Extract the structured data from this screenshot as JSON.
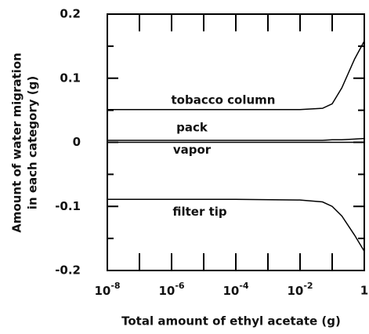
{
  "chart_data": {
    "type": "line",
    "xlabel": "Total amount of ethyl acetate (g)",
    "ylabel": [
      "Amount of water migration",
      "in each category (g)"
    ],
    "xscale": "log",
    "xlim": [
      1e-08,
      1
    ],
    "xticks": [
      {
        "value": 1e-08,
        "label": "10-8"
      },
      {
        "value": 1e-06,
        "label": "10-6"
      },
      {
        "value": 0.0001,
        "label": "10-4"
      },
      {
        "value": 0.01,
        "label": "10-2"
      },
      1
    ],
    "xminorticks": [
      1e-07,
      1e-05,
      0.001,
      0.1
    ],
    "ylim": [
      -0.2,
      0.2
    ],
    "yticks": [
      -0.2,
      -0.1,
      0,
      0.1,
      0.2
    ],
    "yminorticks": [
      -0.15,
      -0.05,
      0.05,
      0.15
    ],
    "x": [
      1e-08,
      0.0001,
      0.01,
      0.05,
      0.1,
      0.2,
      0.5,
      1
    ],
    "series": [
      {
        "name": "tobacco column",
        "color": "#000000",
        "values": [
          0.051,
          0.051,
          0.051,
          0.053,
          0.06,
          0.085,
          0.13,
          0.158
        ]
      },
      {
        "name": "pack",
        "color": "#000000",
        "values": [
          0.003,
          0.003,
          0.003,
          0.003,
          0.004,
          0.004,
          0.005,
          0.006
        ]
      },
      {
        "name": "vapor",
        "color": "#000000",
        "values": [
          0,
          0,
          0,
          0,
          0,
          0,
          0,
          0
        ]
      },
      {
        "name": "filter tip",
        "color": "#000000",
        "values": [
          -0.089,
          -0.089,
          -0.09,
          -0.093,
          -0.1,
          -0.115,
          -0.145,
          -0.17
        ]
      }
    ]
  }
}
